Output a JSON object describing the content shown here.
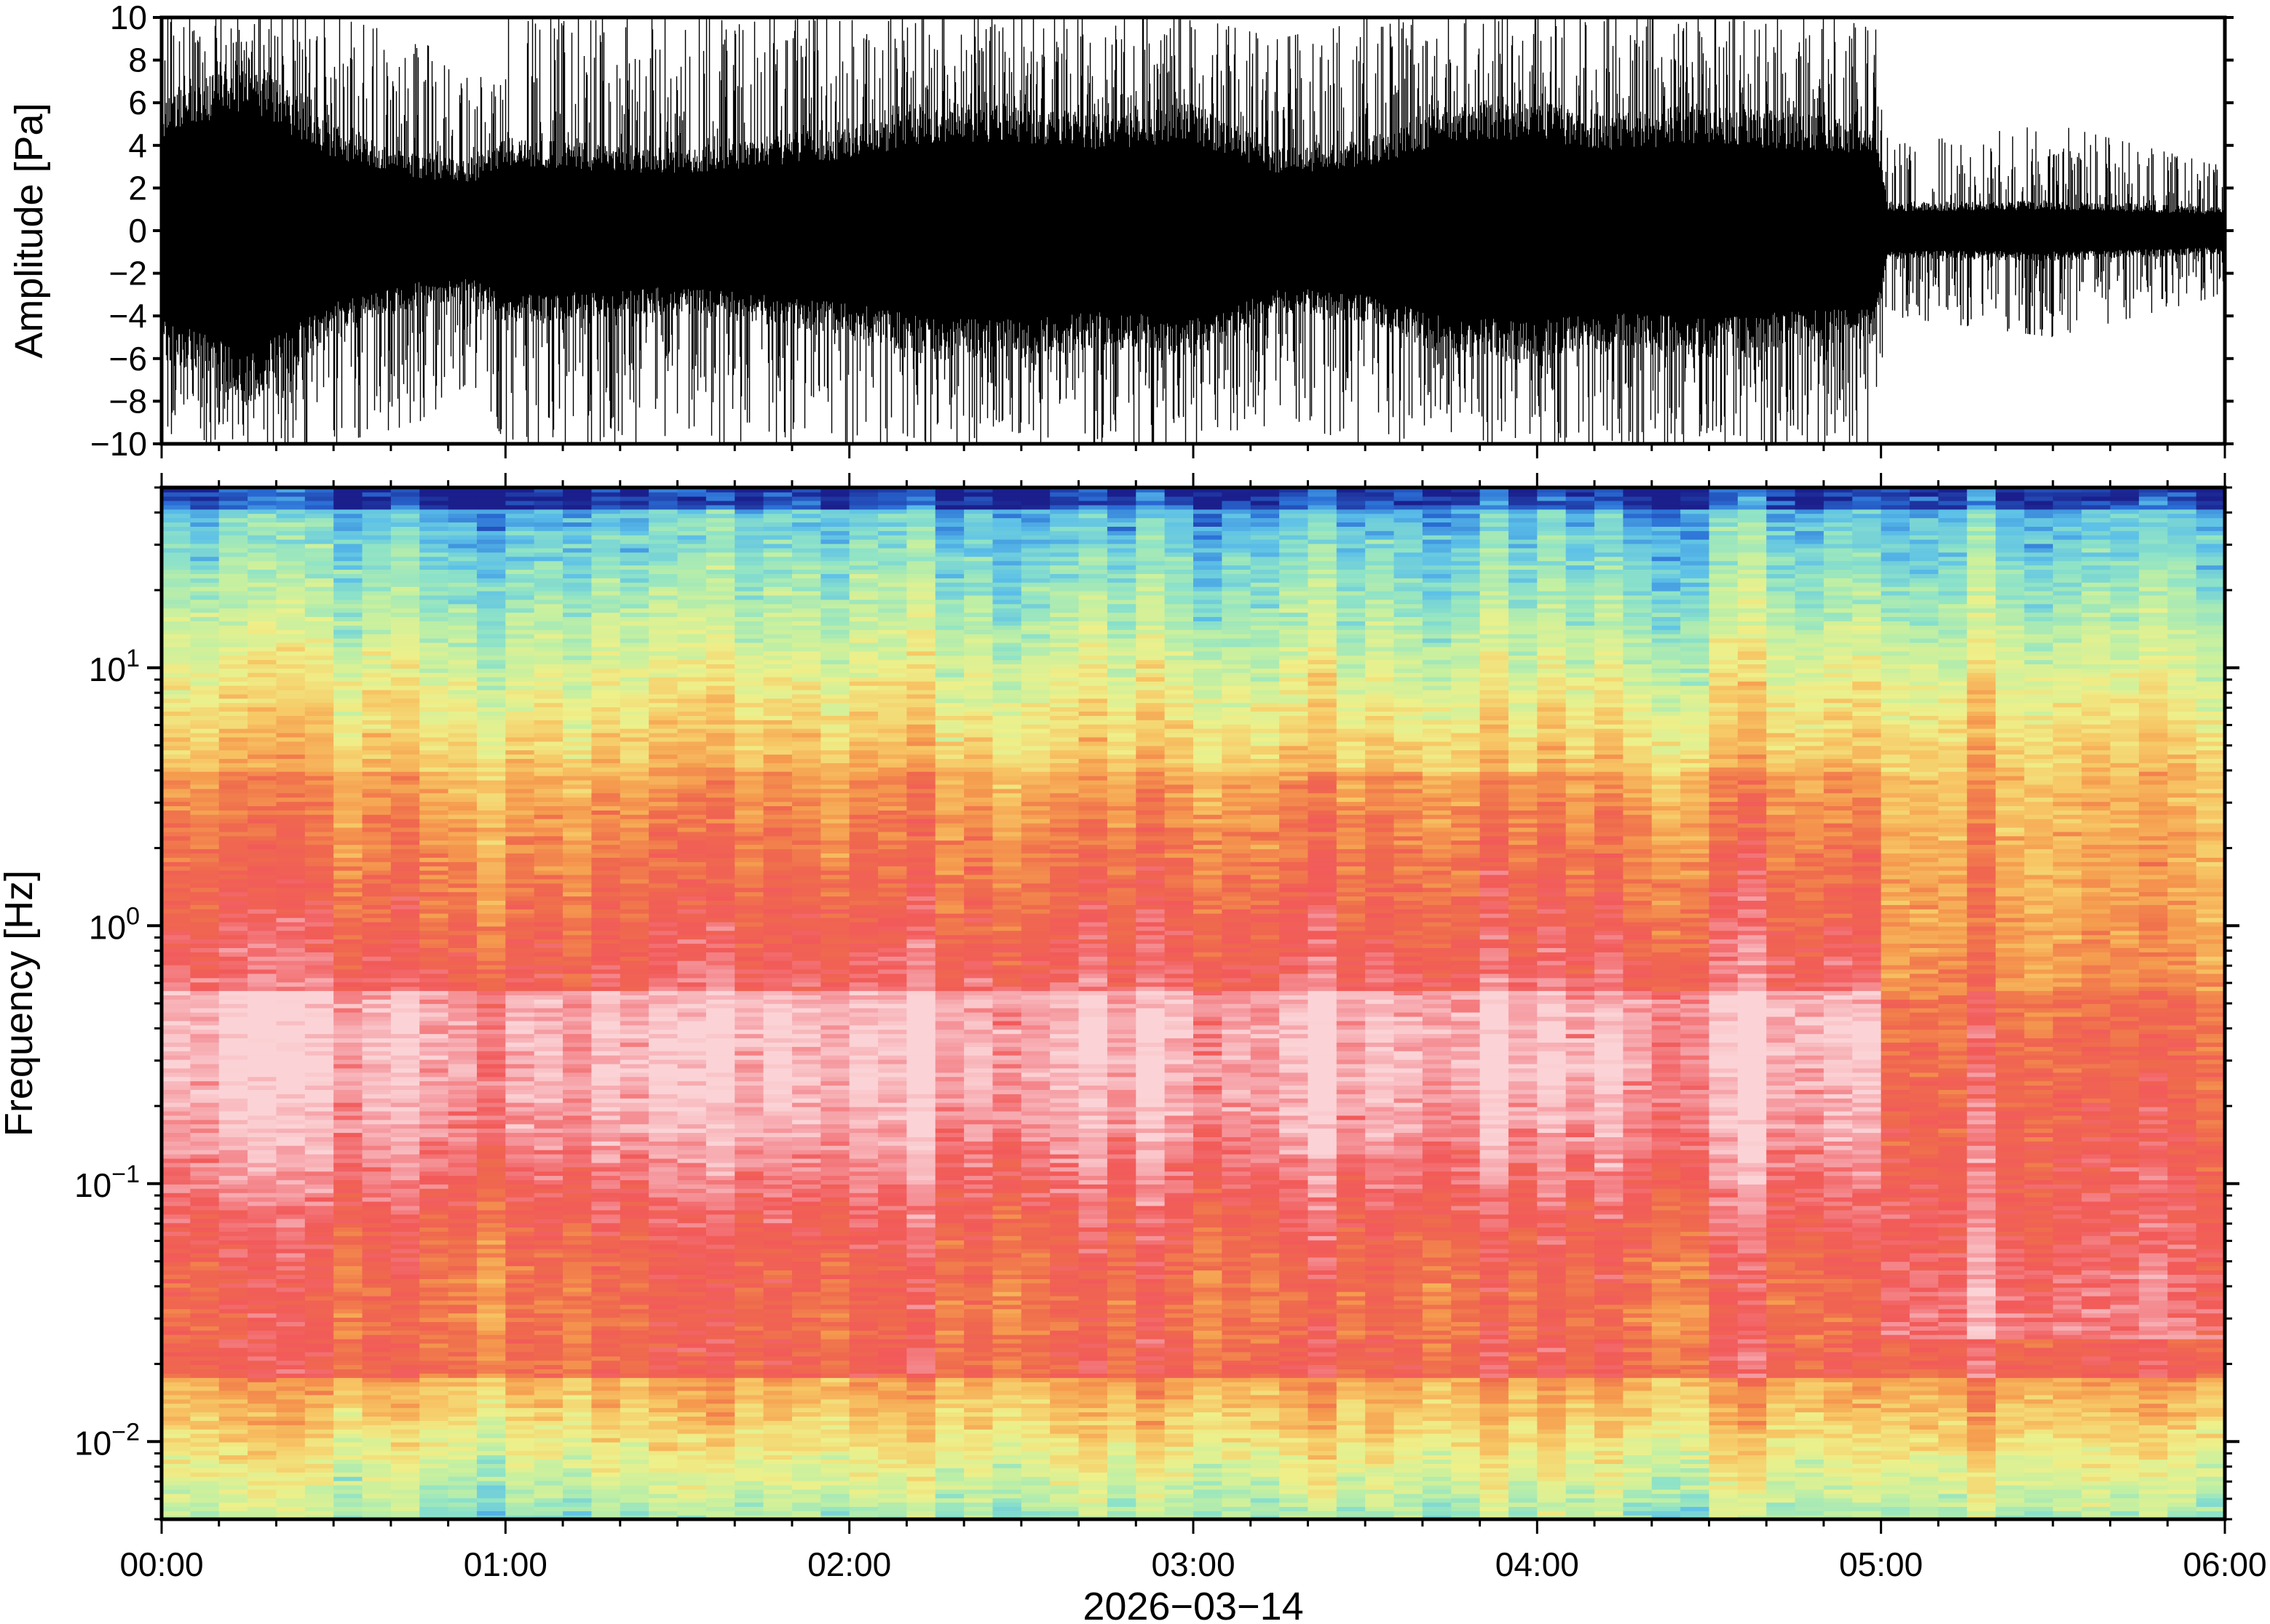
{
  "chart_data": [
    {
      "type": "line",
      "panel": "waveform",
      "ylabel": "Amplitude [Pa]",
      "ylim": [
        -10,
        10
      ],
      "yticks": [
        "10",
        "8",
        "6",
        "4",
        "2",
        "0",
        "−2",
        "−4",
        "−6",
        "−8",
        "−10"
      ],
      "yticks_values": [
        10,
        8,
        6,
        4,
        2,
        0,
        -2,
        -4,
        -6,
        -8,
        -10
      ],
      "xlim_hours": [
        0,
        6
      ],
      "envelope": {
        "x_hours": [
          0.0,
          0.25,
          0.5,
          0.75,
          0.9,
          1.0,
          1.5,
          2.0,
          2.25,
          2.5,
          2.75,
          3.0,
          3.25,
          3.5,
          3.75,
          4.0,
          4.25,
          4.5,
          4.75,
          4.98,
          5.02,
          5.5,
          6.0
        ],
        "typical_peak_pa": [
          5.5,
          7.5,
          4.5,
          3.2,
          3.0,
          4.0,
          3.5,
          4.5,
          5.5,
          5.5,
          5.0,
          5.5,
          3.5,
          4.0,
          5.5,
          5.5,
          5.0,
          5.5,
          5.0,
          4.8,
          1.2,
          1.3,
          1.0
        ],
        "max_peak_pa": [
          10,
          10,
          10,
          9,
          7,
          10,
          10,
          10,
          10,
          10,
          10,
          10,
          9,
          10,
          10,
          10,
          10,
          10,
          10,
          10,
          4,
          5,
          3
        ]
      },
      "notes_visible": "Dense broadband signal; amplitude drops sharply near 05:00"
    },
    {
      "type": "heatmap",
      "panel": "spectrogram",
      "ylabel": "Frequency [Hz]",
      "yscale": "log",
      "ylim_hz": [
        0.005,
        50
      ],
      "yticks": [
        {
          "base": "10",
          "exp": "1",
          "value": 10
        },
        {
          "base": "10",
          "exp": "0",
          "value": 1
        },
        {
          "base": "10",
          "exp": "−1",
          "value": 0.1
        },
        {
          "base": "10",
          "exp": "−2",
          "value": 0.01
        }
      ],
      "colormap": [
        "#1a1f8c",
        "#2a6fd6",
        "#5cc0e8",
        "#8ee3c7",
        "#c6f0a0",
        "#eef08a",
        "#f7c866",
        "#f59b4e",
        "#ef6a4d",
        "#f25a5a",
        "#f59aa0",
        "#fbd3d6"
      ],
      "grid": false,
      "x_hours": [
        0,
        0.5,
        1,
        1.5,
        2,
        2.5,
        3,
        3.5,
        4,
        4.5,
        5,
        5.5,
        6
      ],
      "peak_power_band_hz": [
        0.02,
        2.0
      ],
      "regime_change_hours": 5.03
    }
  ],
  "xaxis": {
    "tick_labels": [
      "00:00",
      "01:00",
      "02:00",
      "03:00",
      "04:00",
      "05:00",
      "06:00"
    ],
    "tick_hours": [
      0,
      1,
      2,
      3,
      4,
      5,
      6
    ],
    "minor_tick_minutes": 10,
    "date_label": "2026−03−14"
  }
}
